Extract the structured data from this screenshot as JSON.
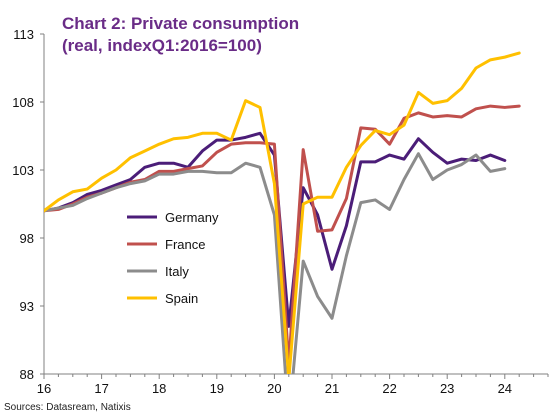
{
  "chart_data": {
    "type": "line",
    "title_line1": "Chart 2: Private consumption",
    "title_line2": "(real, indexQ1:2016=100)",
    "source": "Sources: Datasream, Natixis",
    "xlim": [
      16,
      24.75
    ],
    "ylim": [
      88,
      113
    ],
    "yticks": [
      88,
      93,
      98,
      103,
      108,
      113
    ],
    "xticks": [
      16,
      17,
      18,
      19,
      20,
      21,
      22,
      23,
      24
    ],
    "grid": false,
    "legend_position": "center-left",
    "series": [
      {
        "name": "Germany",
        "color": "#4b1d78",
        "x": [
          16,
          16.25,
          16.5,
          16.75,
          17,
          17.25,
          17.5,
          17.75,
          18,
          18.25,
          18.5,
          18.75,
          19,
          19.25,
          19.5,
          19.75,
          20,
          20.25,
          20.5,
          20.75,
          21,
          21.25,
          21.5,
          21.75,
          22,
          22.25,
          22.5,
          22.75,
          23,
          23.25,
          23.5,
          23.75,
          24
        ],
        "values": [
          100,
          100.2,
          100.6,
          101.2,
          101.5,
          101.9,
          102.3,
          103.2,
          103.5,
          103.5,
          103.2,
          104.4,
          105.2,
          105.2,
          105.4,
          105.7,
          104.1,
          91.5,
          101.7,
          99.7,
          95.7,
          98.9,
          103.6,
          103.6,
          104.1,
          103.8,
          105.3,
          104.3,
          103.5,
          103.8,
          103.7,
          104.1,
          103.7
        ]
      },
      {
        "name": "France",
        "color": "#c0504d",
        "x": [
          16,
          16.25,
          16.5,
          16.75,
          17,
          17.25,
          17.5,
          17.75,
          18,
          18.25,
          18.5,
          18.75,
          19,
          19.25,
          19.5,
          19.75,
          20,
          20.25,
          20.5,
          20.75,
          21,
          21.25,
          21.5,
          21.75,
          22,
          22.25,
          22.5,
          22.75,
          23,
          23.25,
          23.5,
          23.75,
          24,
          24.25
        ],
        "values": [
          100,
          100.1,
          100.5,
          101,
          101.3,
          101.7,
          102.1,
          102.3,
          102.9,
          102.9,
          103.1,
          103.3,
          104.3,
          104.9,
          105,
          105,
          104.9,
          88.7,
          104.5,
          98.5,
          98.6,
          100.9,
          106.1,
          106,
          104.9,
          106.8,
          107.2,
          106.9,
          107,
          106.9,
          107.5,
          107.7,
          107.6,
          107.7
        ]
      },
      {
        "name": "Italy",
        "color": "#8c8c8c",
        "x": [
          16,
          16.25,
          16.5,
          16.75,
          17,
          17.25,
          17.5,
          17.75,
          18,
          18.25,
          18.5,
          18.75,
          19,
          19.25,
          19.5,
          19.75,
          20,
          20.25,
          20.5,
          20.75,
          21,
          21.25,
          21.5,
          21.75,
          22,
          22.25,
          22.5,
          22.75,
          23,
          23.25,
          23.5,
          23.75,
          24
        ],
        "values": [
          100,
          100.2,
          100.4,
          100.9,
          101.3,
          101.7,
          102,
          102.2,
          102.7,
          102.7,
          102.9,
          102.9,
          102.8,
          102.8,
          103.5,
          103.2,
          99.7,
          84.5,
          96.3,
          93.7,
          92.1,
          96.7,
          100.6,
          100.8,
          100.1,
          102.3,
          104.2,
          102.3,
          103,
          103.4,
          104.1,
          102.9,
          103.1
        ]
      },
      {
        "name": "Spain",
        "color": "#ffc000",
        "x": [
          16,
          16.25,
          16.5,
          16.75,
          17,
          17.25,
          17.5,
          17.75,
          18,
          18.25,
          18.5,
          18.75,
          19,
          19.25,
          19.5,
          19.75,
          20,
          20.25,
          20.5,
          20.75,
          21,
          21.25,
          21.5,
          21.75,
          22,
          22.25,
          22.5,
          22.75,
          23,
          23.25,
          23.5,
          23.75,
          24,
          24.25
        ],
        "values": [
          100,
          100.8,
          101.4,
          101.6,
          102.4,
          103.0,
          103.9,
          104.4,
          104.9,
          105.3,
          105.4,
          105.7,
          105.7,
          105.2,
          108.1,
          107.6,
          102.0,
          87.6,
          100.5,
          101,
          101,
          103.2,
          104.8,
          105.9,
          105.6,
          106.3,
          108.7,
          107.9,
          108.1,
          109.0,
          110.5,
          111.1,
          111.3,
          111.6
        ]
      }
    ]
  }
}
